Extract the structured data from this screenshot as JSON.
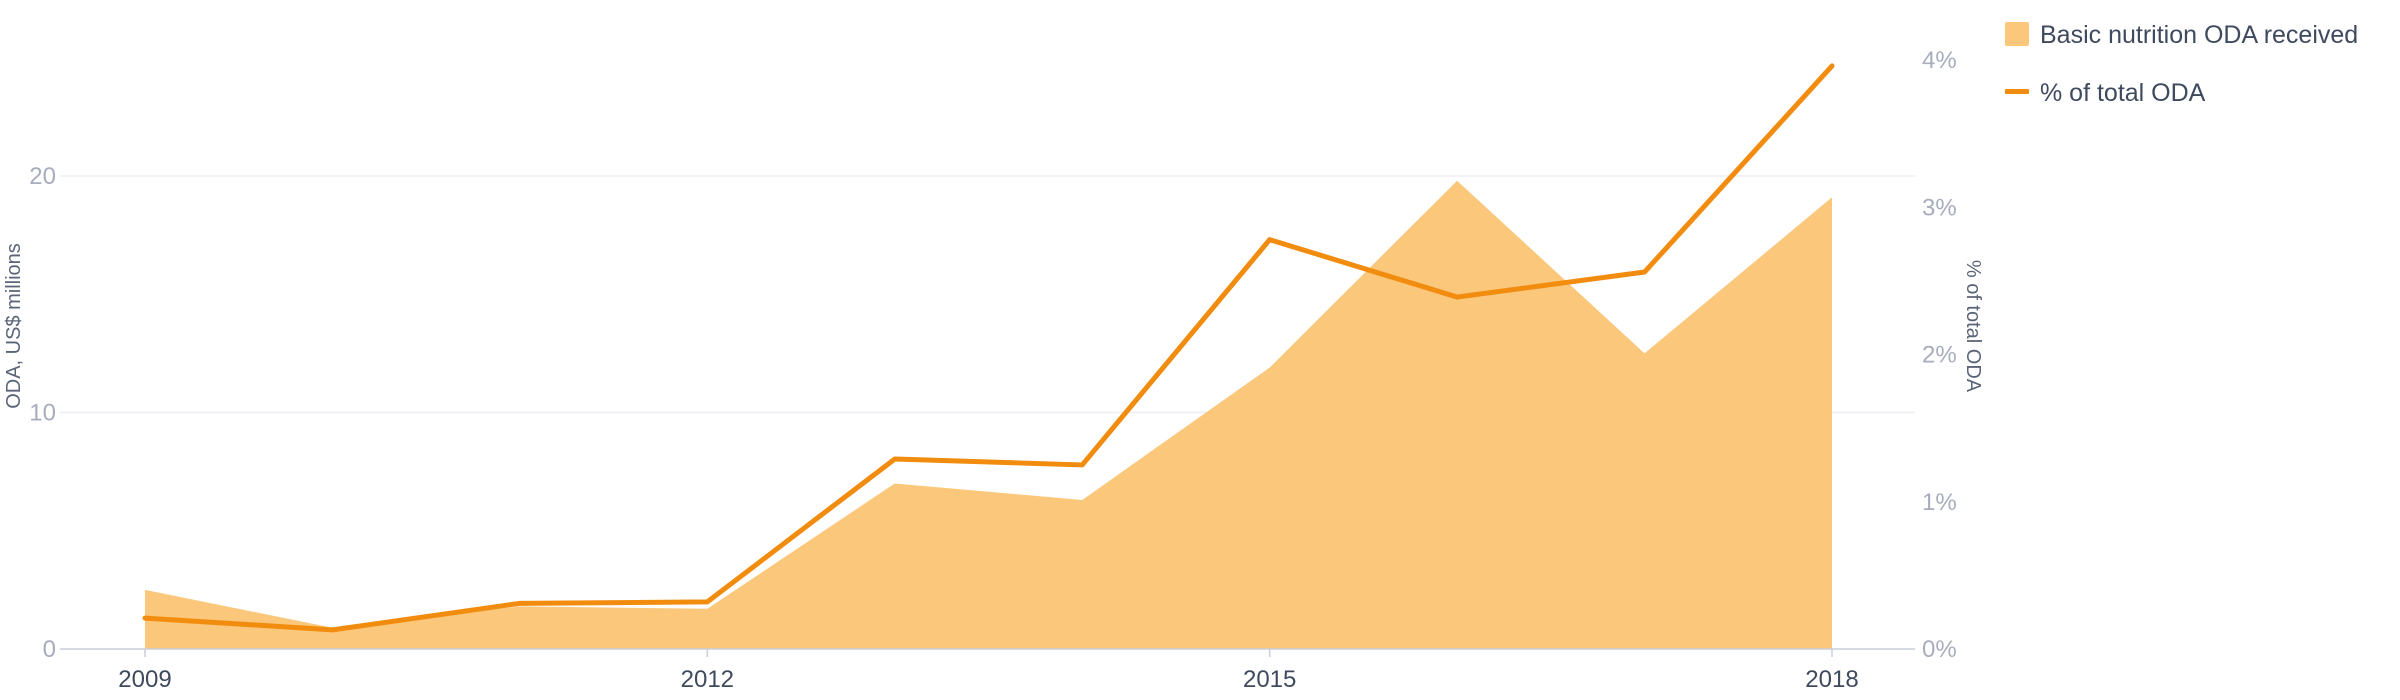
{
  "chart_data": {
    "type": "area",
    "x": [
      2009,
      2010,
      2011,
      2012,
      2013,
      2014,
      2015,
      2016,
      2017,
      2018
    ],
    "x_tick_labels": [
      "2009",
      "2012",
      "2015",
      "2018"
    ],
    "x_tick_values": [
      2009,
      2012,
      2015,
      2018
    ],
    "series": [
      {
        "name": "Basic nutrition ODA received",
        "kind": "area",
        "axis": "left",
        "color": "#fbc77b",
        "values": [
          2.5,
          0.9,
          1.8,
          1.7,
          7.0,
          6.3,
          11.9,
          19.8,
          12.5,
          19.1
        ]
      },
      {
        "name": "% of total ODA",
        "kind": "line",
        "axis": "right",
        "color": "#f28c0f",
        "values": [
          0.21,
          0.13,
          0.31,
          0.32,
          1.29,
          1.25,
          2.78,
          2.39,
          2.56,
          3.96
        ]
      }
    ],
    "y_left": {
      "label": "ODA, US$ millions",
      "ylim": [
        0,
        20
      ],
      "ticks": [
        0,
        10,
        20
      ],
      "tick_labels": [
        "0",
        "10",
        "20"
      ]
    },
    "y_right": {
      "label": "% of total ODA",
      "ylim": [
        0,
        4
      ],
      "ticks": [
        0,
        1,
        2,
        3,
        4
      ],
      "tick_labels": [
        "0%",
        "1%",
        "2%",
        "3%",
        "4%"
      ]
    },
    "grid": true,
    "legend": {
      "position": "top-right",
      "entries": [
        "Basic nutrition ODA received",
        "% of total ODA"
      ]
    }
  }
}
